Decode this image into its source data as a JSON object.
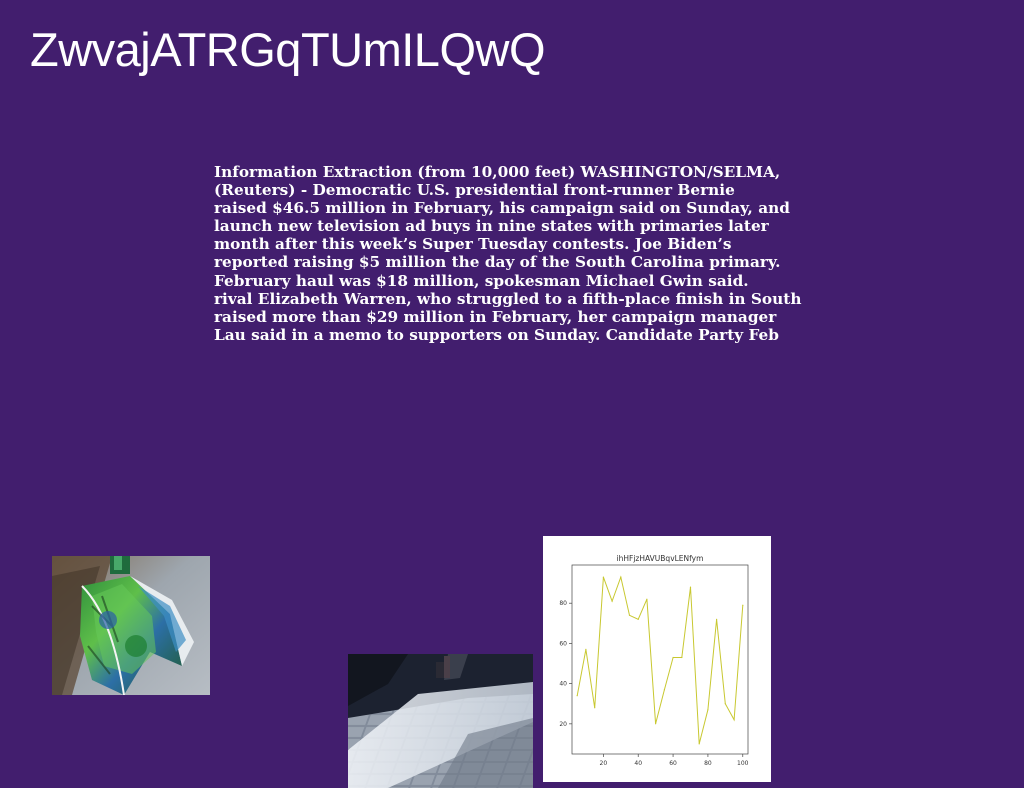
{
  "page": {
    "title": "ZwvajATRGqTUmILQwQ"
  },
  "article": {
    "lines": [
      "Information Extraction (from 10,000 feet) WASHINGTON/SELMA,",
      "(Reuters) - Democratic U.S. presidential front-runner Bernie",
      "raised $46.5 million in February, his campaign said on Sunday, and",
      "launch new television ad buys in nine states with primaries later",
      "month after this week’s Super Tuesday contests. Joe Biden’s",
      "reported raising $5 million the day of the South Carolina primary.",
      "February haul was $18 million, spokesman Michael Gwin said.",
      "rival Elizabeth Warren, who struggled to a fifth-place finish in South",
      "raised more than $29 million in February, her campaign manager",
      "Lau said in a memo to supporters on Sunday. Candidate Party Feb"
    ]
  },
  "colors": {
    "background": "#421e6e",
    "text": "#ffffff",
    "line": "#c8c830"
  },
  "chart_data": {
    "type": "line",
    "title": "ihHFjzHAVUBqvLENfym",
    "xlabel": "",
    "ylabel": "",
    "xlim": [
      2,
      103
    ],
    "ylim": [
      5,
      99
    ],
    "xticks": [
      20,
      40,
      60,
      80,
      100
    ],
    "yticks": [
      20,
      40,
      60,
      80
    ],
    "grid": false,
    "x": [
      5,
      10,
      15,
      20,
      25,
      30,
      35,
      40,
      45,
      50,
      55,
      60,
      65,
      70,
      75,
      80,
      85,
      90,
      95,
      100
    ],
    "series": [
      {
        "values": [
          34,
          57,
          28,
          93,
          81,
          93,
          74,
          72,
          82,
          20,
          37,
          53,
          53,
          88,
          10,
          27,
          72,
          30,
          22,
          79
        ]
      }
    ]
  }
}
